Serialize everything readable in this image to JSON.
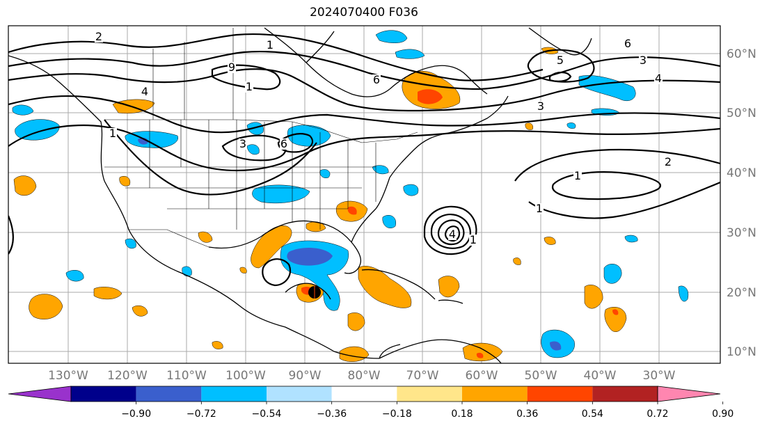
{
  "title": "2024070400 F036",
  "longitude_labels": [
    "130°W",
    "120°W",
    "110°W",
    "100°W",
    "90°W",
    "80°W",
    "70°W",
    "60°W",
    "50°W",
    "40°W",
    "30°W"
  ],
  "latitude_labels": [
    "60°N",
    "50°N",
    "40°N",
    "30°N",
    "20°N",
    "10°N"
  ],
  "colorbar": {
    "ticks": [
      "−0.90",
      "−0.72",
      "−0.54",
      "−0.36",
      "−0.18",
      "0.18",
      "0.36",
      "0.54",
      "0.72",
      "0.90"
    ],
    "colors": [
      "#9932cc",
      "#00008b",
      "#3a5fcd",
      "#00bfff",
      "#b0e2ff",
      "#ffffff",
      "#ffe68a",
      "#ffa500",
      "#ff4500",
      "#b22222",
      "#ff86b0"
    ]
  },
  "contour_labels": [
    "2",
    "1",
    "1",
    "6",
    "5",
    "6",
    "3",
    "4",
    "3",
    "9",
    "1",
    "3",
    "6",
    "2",
    "1",
    "1",
    "1",
    "4",
    "4"
  ],
  "map_colors": {
    "contour": "#000000",
    "grid": "#aaaaaa",
    "coast": "#000000"
  }
}
